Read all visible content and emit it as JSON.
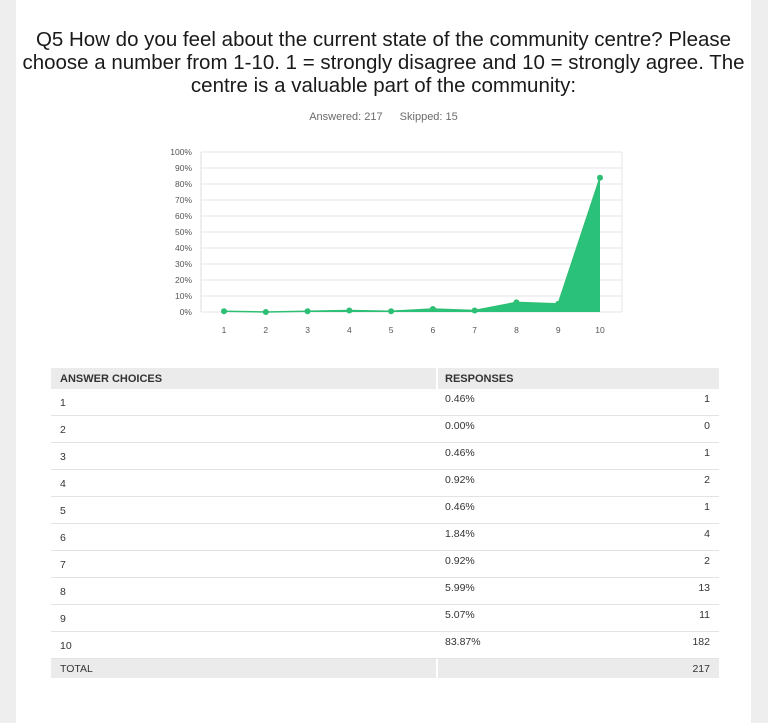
{
  "question": "Q5 How do you feel about the current state of the community centre? Please choose a number from 1-10. 1 = strongly disagree and 10 = strongly agree. The centre is a valuable part of the community:",
  "answered": "Answered: 217",
  "skipped": "Skipped: 15",
  "chart_data": {
    "type": "area",
    "categories": [
      "1",
      "2",
      "3",
      "4",
      "5",
      "6",
      "7",
      "8",
      "9",
      "10"
    ],
    "values": [
      0.46,
      0.0,
      0.46,
      0.92,
      0.46,
      1.84,
      0.92,
      5.99,
      5.07,
      83.87
    ],
    "ylim": [
      0,
      100
    ],
    "yticks": [
      "0%",
      "10%",
      "20%",
      "30%",
      "40%",
      "50%",
      "60%",
      "70%",
      "80%",
      "90%",
      "100%"
    ],
    "grid": true,
    "color": "#2dbf74",
    "fill_color": "#1fbf73"
  },
  "table": {
    "header_choices": "ANSWER CHOICES",
    "header_responses": "RESPONSES",
    "rows": [
      {
        "choice": "1",
        "pct": "0.46%",
        "count": "1"
      },
      {
        "choice": "2",
        "pct": "0.00%",
        "count": "0"
      },
      {
        "choice": "3",
        "pct": "0.46%",
        "count": "1"
      },
      {
        "choice": "4",
        "pct": "0.92%",
        "count": "2"
      },
      {
        "choice": "5",
        "pct": "0.46%",
        "count": "1"
      },
      {
        "choice": "6",
        "pct": "1.84%",
        "count": "4"
      },
      {
        "choice": "7",
        "pct": "0.92%",
        "count": "2"
      },
      {
        "choice": "8",
        "pct": "5.99%",
        "count": "13"
      },
      {
        "choice": "9",
        "pct": "5.07%",
        "count": "11"
      },
      {
        "choice": "10",
        "pct": "83.87%",
        "count": "182"
      }
    ],
    "total_label": "TOTAL",
    "total_count": "217"
  }
}
